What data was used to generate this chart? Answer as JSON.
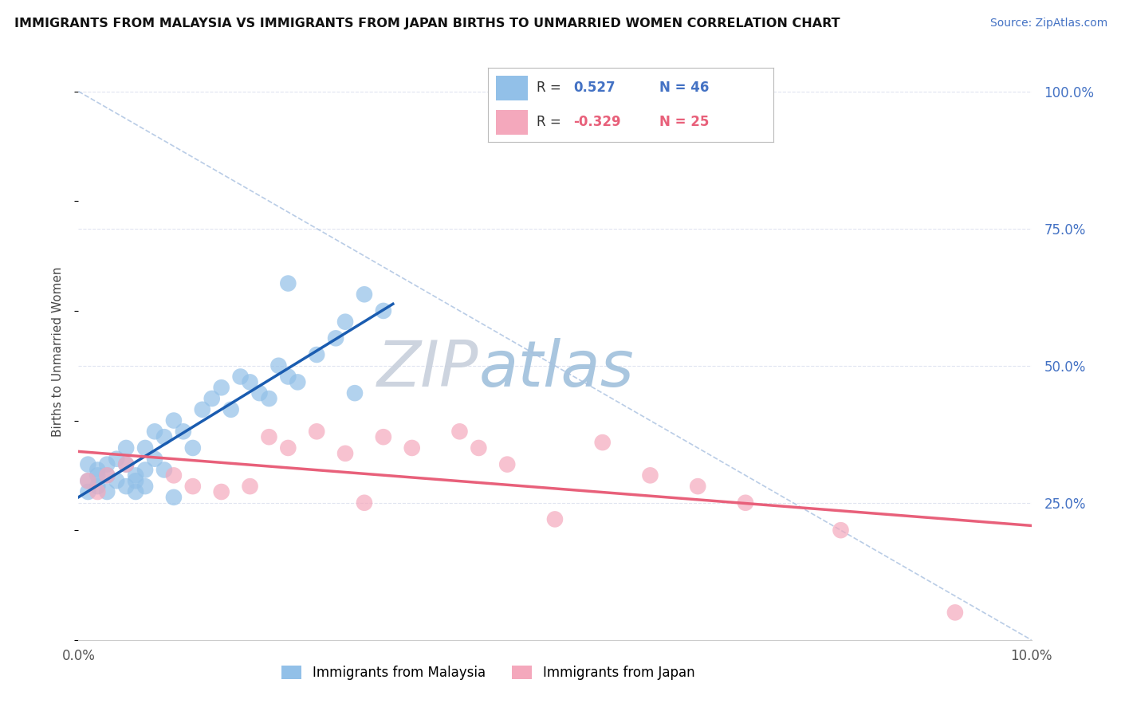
{
  "title": "IMMIGRANTS FROM MALAYSIA VS IMMIGRANTS FROM JAPAN BIRTHS TO UNMARRIED WOMEN CORRELATION CHART",
  "source": "Source: ZipAtlas.com",
  "ylabel": "Births to Unmarried Women",
  "malaysia_R": 0.527,
  "malaysia_N": 46,
  "japan_R": -0.329,
  "japan_N": 25,
  "malaysia_color": "#92C0E8",
  "japan_color": "#F4A8BC",
  "malaysia_line_color": "#1A5CB0",
  "japan_line_color": "#E8607A",
  "diag_line_color": "#A8C0E0",
  "background_color": "#FFFFFF",
  "grid_color": "#E0E4F0",
  "watermark_color_zip": "#C8D8E8",
  "watermark_color_atlas": "#A0C0DC",
  "malaysia_x": [
    0.001,
    0.001,
    0.001,
    0.002,
    0.002,
    0.002,
    0.003,
    0.003,
    0.003,
    0.004,
    0.004,
    0.005,
    0.005,
    0.005,
    0.006,
    0.006,
    0.006,
    0.007,
    0.007,
    0.007,
    0.008,
    0.008,
    0.009,
    0.009,
    0.01,
    0.01,
    0.011,
    0.012,
    0.013,
    0.014,
    0.015,
    0.016,
    0.017,
    0.018,
    0.019,
    0.02,
    0.021,
    0.022,
    0.023,
    0.025,
    0.027,
    0.028,
    0.029,
    0.03,
    0.032,
    0.022
  ],
  "malaysia_y": [
    0.29,
    0.32,
    0.27,
    0.3,
    0.28,
    0.31,
    0.27,
    0.3,
    0.32,
    0.29,
    0.33,
    0.28,
    0.32,
    0.35,
    0.3,
    0.27,
    0.29,
    0.35,
    0.31,
    0.28,
    0.38,
    0.33,
    0.37,
    0.31,
    0.26,
    0.4,
    0.38,
    0.35,
    0.42,
    0.44,
    0.46,
    0.42,
    0.48,
    0.47,
    0.45,
    0.44,
    0.5,
    0.48,
    0.47,
    0.52,
    0.55,
    0.58,
    0.45,
    0.63,
    0.6,
    0.65
  ],
  "japan_x": [
    0.001,
    0.002,
    0.003,
    0.005,
    0.01,
    0.012,
    0.015,
    0.018,
    0.02,
    0.022,
    0.025,
    0.028,
    0.03,
    0.032,
    0.035,
    0.04,
    0.042,
    0.045,
    0.05,
    0.055,
    0.06,
    0.065,
    0.07,
    0.08,
    0.092
  ],
  "japan_y": [
    0.29,
    0.27,
    0.3,
    0.32,
    0.3,
    0.28,
    0.27,
    0.28,
    0.37,
    0.35,
    0.38,
    0.34,
    0.25,
    0.37,
    0.35,
    0.38,
    0.35,
    0.32,
    0.22,
    0.36,
    0.3,
    0.28,
    0.25,
    0.2,
    0.05
  ],
  "xlim": [
    0.0,
    0.1
  ],
  "ylim": [
    0.0,
    1.05
  ],
  "xticks": [
    0.0,
    0.1
  ],
  "xticklabels": [
    "0.0%",
    "10.0%"
  ],
  "right_yticks": [
    0.0,
    0.25,
    0.5,
    0.75,
    1.0
  ],
  "right_yticklabels": [
    "",
    "25.0%",
    "50.0%",
    "75.0%",
    "100.0%"
  ],
  "grid_yticks": [
    0.25,
    0.5,
    0.75,
    1.0
  ]
}
